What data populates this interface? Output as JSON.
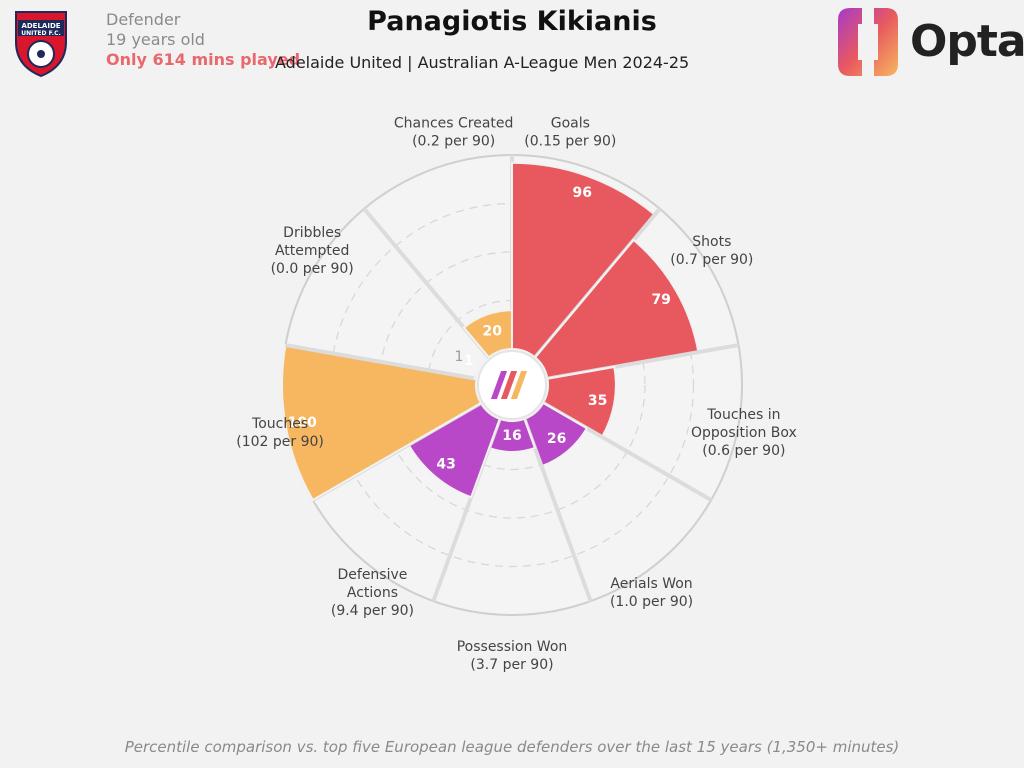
{
  "player": {
    "name": "Panagiotis Kikianis",
    "position": "Defender",
    "age": "19 years old",
    "minutes_warning": "Only 614 mins played",
    "competition": "Adelaide United | Australian A-League Men 2024-25"
  },
  "brand": {
    "name": "Opta"
  },
  "footer": "Percentile comparison vs. top five European league defenders over the last 15 years (1,350+ minutes)",
  "colors": {
    "attacking": "#e8595f",
    "defending": "#b948c8",
    "possession": "#f6b760",
    "background": "#f2f2f2",
    "grid": "#cfcfcf"
  },
  "chart_data": {
    "type": "polar_bar",
    "scale_label": "1",
    "rlim": [
      0,
      100
    ],
    "categories": [
      {
        "name": "Goals",
        "per90": "(0.15 per 90)",
        "percentile": 96,
        "group": "attacking"
      },
      {
        "name": "Shots",
        "per90": "(0.7 per 90)",
        "percentile": 79,
        "group": "attacking"
      },
      {
        "name": "Touches in Opposition Box",
        "per90": "(0.6 per 90)",
        "percentile": 35,
        "group": "attacking"
      },
      {
        "name": "Aerials Won",
        "per90": "(1.0 per 90)",
        "percentile": 26,
        "group": "defending"
      },
      {
        "name": "Possession Won",
        "per90": "(3.7 per 90)",
        "percentile": 16,
        "group": "defending"
      },
      {
        "name": "Defensive Actions",
        "per90": "(9.4 per 90)",
        "percentile": 43,
        "group": "defending"
      },
      {
        "name": "Touches",
        "per90": "(102 per 90)",
        "percentile": 100,
        "group": "possession"
      },
      {
        "name": "Dribbles Attempted",
        "per90": "(0.0 per 90)",
        "percentile": 1,
        "group": "possession"
      },
      {
        "name": "Chances Created",
        "per90": "(0.2 per 90)",
        "percentile": 20,
        "group": "possession"
      }
    ]
  }
}
